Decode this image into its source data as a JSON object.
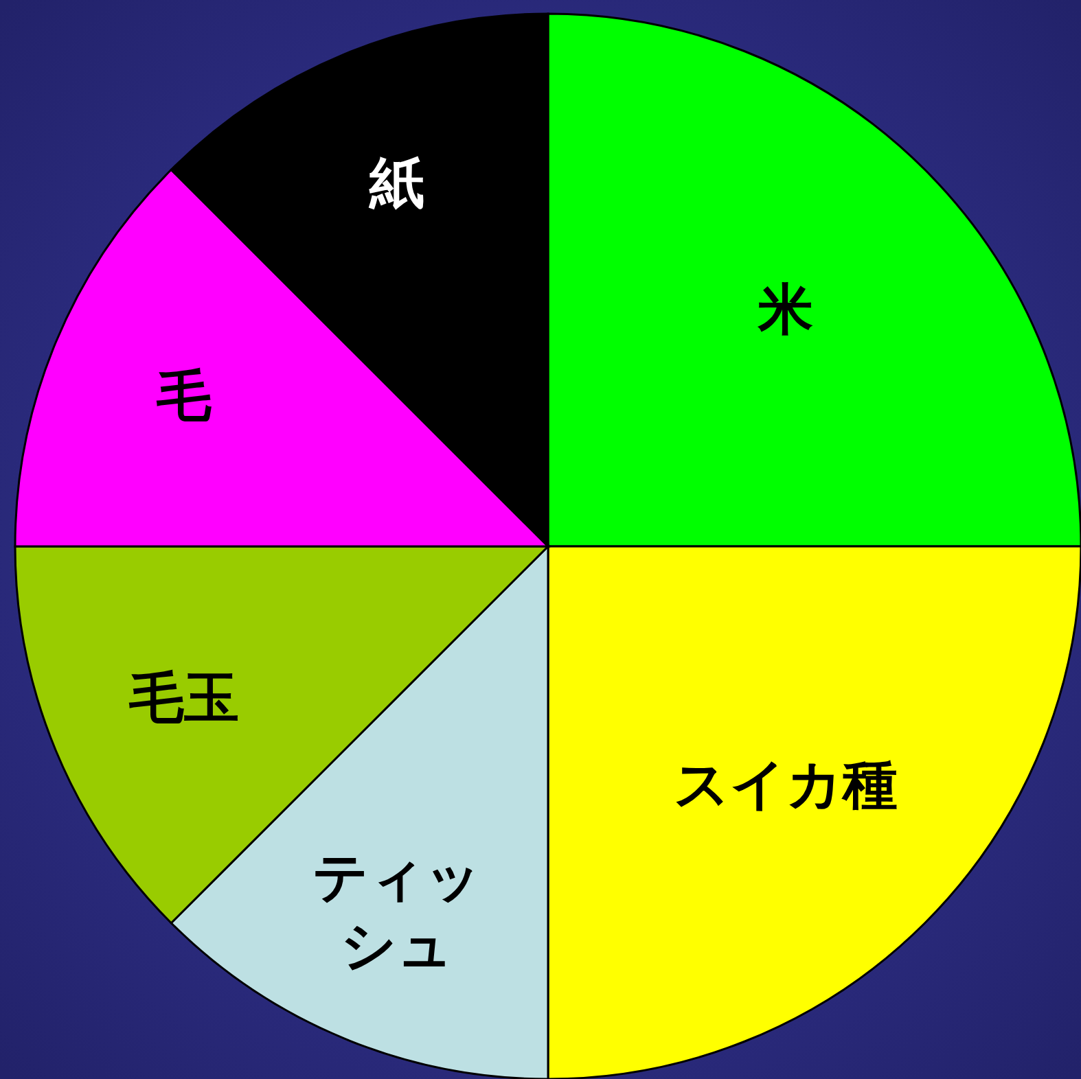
{
  "chart_data": {
    "type": "pie",
    "categories": [
      "米",
      "スイカ種",
      "ティッシュ",
      "毛玉",
      "毛",
      "紙"
    ],
    "values": [
      25,
      25,
      12.5,
      12.5,
      12.5,
      12.5
    ],
    "colors": [
      "#00ff00",
      "#ffff00",
      "#bde0e3",
      "#99cc00",
      "#ff00ff",
      "#000000"
    ]
  }
}
